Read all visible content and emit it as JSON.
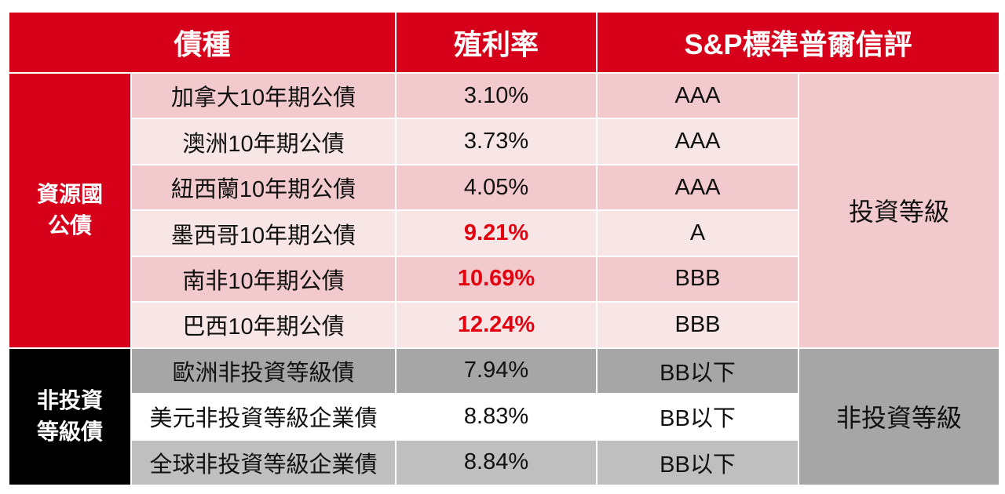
{
  "header": {
    "col_bond_type": "債種",
    "col_yield": "殖利率",
    "col_rating": "S&P標準普爾信評"
  },
  "groups": {
    "resource": {
      "label_line1": "資源國",
      "label_line2": "公債",
      "grade": "投資等級"
    },
    "junk": {
      "label_line1": "非投資",
      "label_line2": "等級債",
      "grade": "非投資等級"
    }
  },
  "rows": [
    {
      "name": "加拿大10年期公債",
      "yield": "3.10%",
      "rating": "AAA"
    },
    {
      "name": "澳洲10年期公債",
      "yield": "3.73%",
      "rating": "AAA"
    },
    {
      "name": "紐西蘭10年期公債",
      "yield": "4.05%",
      "rating": "AAA"
    },
    {
      "name": "墨西哥10年期公債",
      "yield": "9.21%",
      "rating": "A"
    },
    {
      "name": "南非10年期公債",
      "yield": "10.69%",
      "rating": "BBB"
    },
    {
      "name": "巴西10年期公債",
      "yield": "12.24%",
      "rating": "BBB"
    },
    {
      "name": "歐洲非投資等級債",
      "yield": "7.94%",
      "rating": "BB以下"
    },
    {
      "name": "美元非投資等級企業債",
      "yield": "8.83%",
      "rating": "BB以下"
    },
    {
      "name": "全球非投資等級企業債",
      "yield": "8.84%",
      "rating": "BB以下"
    }
  ],
  "colors": {
    "brand_red": "#d7001b",
    "highlight_red": "#e3000f",
    "pink_dark": "#f2c9cc",
    "pink_light": "#f8e5e6",
    "gray_dark": "#a6a6a6",
    "gray_light": "#bfbfbf",
    "black": "#000000"
  }
}
